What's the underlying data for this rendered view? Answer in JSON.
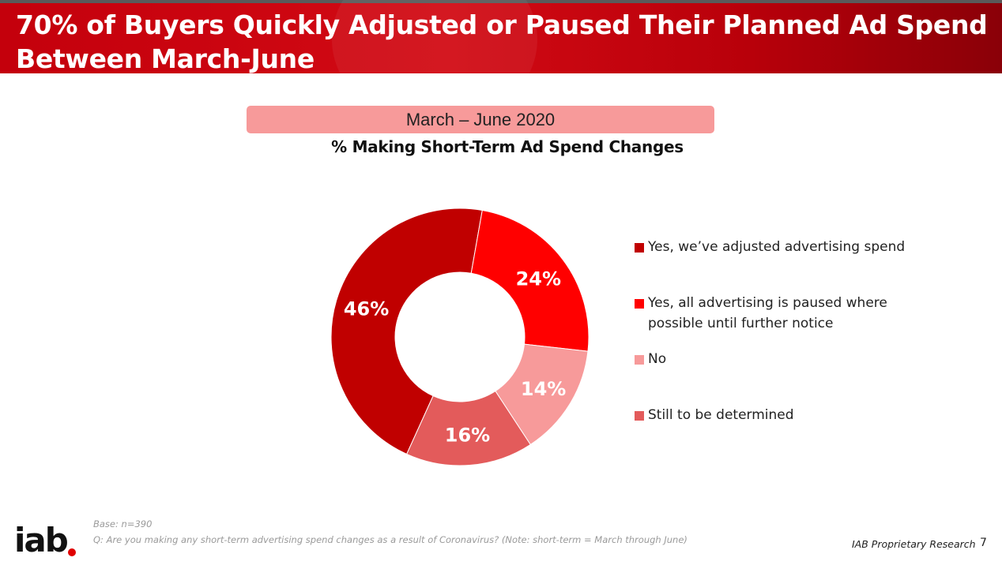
{
  "header": {
    "title": "70% of Buyers Quickly Adjusted or Paused Their Planned Ad Spend Between March-June"
  },
  "period_label": "March – June 2020",
  "chart_data": {
    "type": "pie",
    "subtype": "donut",
    "title": "% Making Short-Term Ad Spend Changes",
    "legend_position": "right",
    "categories": [
      "Yes, we’ve adjusted advertising spend",
      "Yes, all advertising is paused where possible until further notice",
      "No",
      "Still to be determined"
    ],
    "values": [
      46,
      24,
      14,
      16
    ],
    "value_labels": [
      "46%",
      "24%",
      "14%",
      "16%"
    ],
    "colors": [
      "#c00000",
      "#ff0000",
      "#f79a9a",
      "#e35b5b"
    ],
    "unit": "%"
  },
  "footer": {
    "base": "Base: n=390",
    "question": "Q: Are you making any short-term advertising spend changes as a result of Coronavirus? (Note: short-term = March through June)",
    "logo_text": "iab",
    "source": "IAB Proprietary Research",
    "page_number": "7"
  }
}
